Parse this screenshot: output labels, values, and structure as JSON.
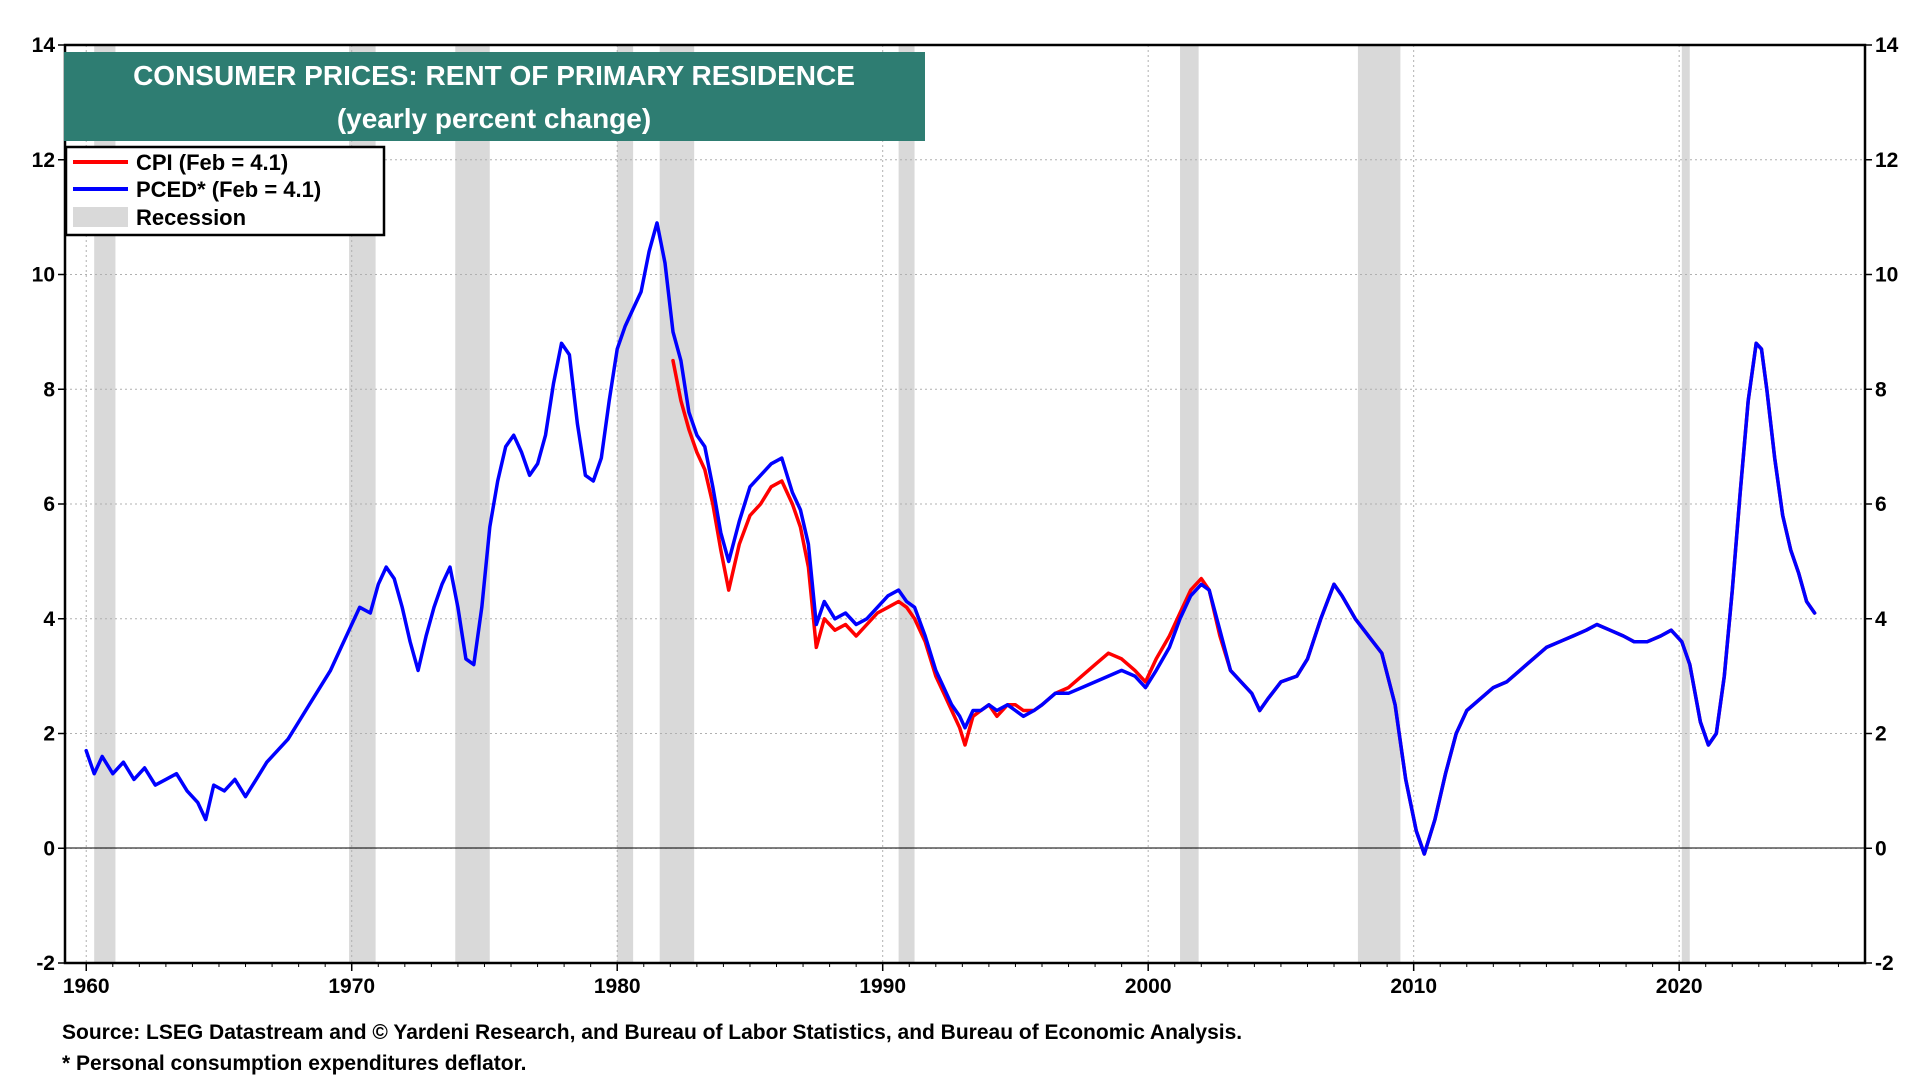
{
  "chart_data": {
    "type": "line",
    "title": "CONSUMER PRICES: RENT OF PRIMARY RESIDENCE",
    "subtitle": "(yearly percent change)",
    "ylim": [
      -2,
      14
    ],
    "yticks": [
      -2,
      0,
      2,
      4,
      6,
      8,
      10,
      12,
      14
    ],
    "xlim": [
      1959.2,
      2027.0
    ],
    "xticks": [
      1960,
      1970,
      1980,
      1990,
      2000,
      2010,
      2020
    ],
    "grid": true,
    "legend": {
      "position": "top-left",
      "entries": [
        {
          "label": "CPI (Feb = 4.1)",
          "color": "#ff0000",
          "kind": "line"
        },
        {
          "label": "PCED* (Feb = 4.1)",
          "color": "#0000ff",
          "kind": "line"
        },
        {
          "label": "Recession",
          "color": "#d9d9d9",
          "kind": "patch"
        }
      ]
    },
    "recessions": [
      [
        1960.3,
        1961.1
      ],
      [
        1969.9,
        1970.9
      ],
      [
        1973.9,
        1975.2
      ],
      [
        1980.0,
        1980.6
      ],
      [
        1981.6,
        1982.9
      ],
      [
        1990.6,
        1991.2
      ],
      [
        2001.2,
        2001.9
      ],
      [
        2007.9,
        2009.5
      ],
      [
        2020.1,
        2020.4
      ]
    ],
    "series": [
      {
        "name": "CPI",
        "color": "#ff0000",
        "x": [
          1982.1,
          1982.4,
          1982.7,
          1983.0,
          1983.3,
          1983.6,
          1983.9,
          1984.2,
          1984.6,
          1985.0,
          1985.4,
          1985.8,
          1986.2,
          1986.6,
          1986.9,
          1987.2,
          1987.5,
          1987.8,
          1988.2,
          1988.6,
          1989.0,
          1989.4,
          1989.8,
          1990.2,
          1990.6,
          1990.9,
          1991.2,
          1991.6,
          1992.0,
          1992.3,
          1992.6,
          1992.9,
          1993.1,
          1993.4,
          1993.7,
          1994.0,
          1994.3,
          1994.7,
          1995.0,
          1995.3,
          1995.7,
          1996.0,
          1996.5,
          1997.0,
          1997.5,
          1998.0,
          1998.5,
          1999.0,
          1999.5,
          1999.9,
          2000.3,
          2000.8,
          2001.2,
          2001.6,
          2002.0,
          2002.3,
          2002.7,
          2003.1,
          2003.5,
          2003.9,
          2004.2,
          2004.5,
          2005.0,
          2005.6,
          2006.0,
          2006.5,
          2007.0,
          2007.3,
          2007.8,
          2008.3,
          2008.8,
          2009.3,
          2009.7,
          2010.1,
          2010.4,
          2010.8,
          2011.2,
          2011.6,
          2012.0,
          2012.5,
          2013.0,
          2013.5,
          2014.0,
          2014.5,
          2015.0,
          2015.5,
          2016.0,
          2016.5,
          2016.9,
          2017.4,
          2017.9,
          2018.3,
          2018.8,
          2019.3,
          2019.7,
          2020.1,
          2020.4,
          2020.8,
          2021.1,
          2021.4,
          2021.7,
          2022.0,
          2022.3,
          2022.6,
          2022.9,
          2023.1,
          2023.3,
          2023.6,
          2023.9,
          2024.2,
          2024.5,
          2024.8,
          2025.1
        ],
        "y": [
          8.5,
          7.8,
          7.3,
          6.9,
          6.6,
          6.0,
          5.2,
          4.5,
          5.3,
          5.8,
          6.0,
          6.3,
          6.4,
          6.0,
          5.6,
          4.9,
          3.5,
          4.0,
          3.8,
          3.9,
          3.7,
          3.9,
          4.1,
          4.2,
          4.3,
          4.2,
          4.0,
          3.6,
          3.0,
          2.7,
          2.4,
          2.1,
          1.8,
          2.3,
          2.4,
          2.5,
          2.3,
          2.5,
          2.5,
          2.4,
          2.4,
          2.5,
          2.7,
          2.8,
          3.0,
          3.2,
          3.4,
          3.3,
          3.1,
          2.9,
          3.3,
          3.7,
          4.1,
          4.5,
          4.7,
          4.5,
          3.7,
          3.1,
          2.9,
          2.7,
          2.4,
          2.6,
          2.9,
          3.0,
          3.3,
          4.0,
          4.6,
          4.4,
          4.0,
          3.7,
          3.4,
          2.5,
          1.2,
          0.3,
          -0.1,
          0.5,
          1.3,
          2.0,
          2.4,
          2.6,
          2.8,
          2.9,
          3.1,
          3.3,
          3.5,
          3.6,
          3.7,
          3.8,
          3.9,
          3.8,
          3.7,
          3.6,
          3.6,
          3.7,
          3.8,
          3.6,
          3.2,
          2.2,
          1.8,
          2.0,
          3.0,
          4.5,
          6.2,
          7.8,
          8.8,
          8.7,
          8.0,
          6.8,
          5.8,
          5.2,
          4.8,
          4.3,
          4.1
        ]
      },
      {
        "name": "PCED",
        "color": "#0000ff",
        "x": [
          1960.0,
          1960.3,
          1960.6,
          1961.0,
          1961.4,
          1961.8,
          1962.2,
          1962.6,
          1963.0,
          1963.4,
          1963.8,
          1964.2,
          1964.5,
          1964.8,
          1965.2,
          1965.6,
          1966.0,
          1966.4,
          1966.8,
          1967.2,
          1967.6,
          1968.0,
          1968.4,
          1968.8,
          1969.2,
          1969.6,
          1970.0,
          1970.3,
          1970.7,
          1971.0,
          1971.3,
          1971.6,
          1971.9,
          1972.2,
          1972.5,
          1972.8,
          1973.1,
          1973.4,
          1973.7,
          1974.0,
          1974.3,
          1974.6,
          1974.9,
          1975.2,
          1975.5,
          1975.8,
          1976.1,
          1976.4,
          1976.7,
          1977.0,
          1977.3,
          1977.6,
          1977.9,
          1978.2,
          1978.5,
          1978.8,
          1979.1,
          1979.4,
          1979.7,
          1980.0,
          1980.3,
          1980.6,
          1980.9,
          1981.2,
          1981.5,
          1981.8,
          1982.1,
          1982.4,
          1982.7,
          1983.0,
          1983.3,
          1983.6,
          1983.9,
          1984.2,
          1984.6,
          1985.0,
          1985.4,
          1985.8,
          1986.2,
          1986.6,
          1986.9,
          1987.2,
          1987.5,
          1987.8,
          1988.2,
          1988.6,
          1989.0,
          1989.4,
          1989.8,
          1990.2,
          1990.6,
          1990.9,
          1991.2,
          1991.6,
          1992.0,
          1992.3,
          1992.6,
          1992.9,
          1993.1,
          1993.4,
          1993.7,
          1994.0,
          1994.3,
          1994.7,
          1995.0,
          1995.3,
          1995.7,
          1996.0,
          1996.5,
          1997.0,
          1997.5,
          1998.0,
          1998.5,
          1999.0,
          1999.5,
          1999.9,
          2000.3,
          2000.8,
          2001.2,
          2001.6,
          2002.0,
          2002.3,
          2002.7,
          2003.1,
          2003.5,
          2003.9,
          2004.2,
          2004.5,
          2005.0,
          2005.6,
          2006.0,
          2006.5,
          2007.0,
          2007.3,
          2007.8,
          2008.3,
          2008.8,
          2009.3,
          2009.7,
          2010.1,
          2010.4,
          2010.8,
          2011.2,
          2011.6,
          2012.0,
          2012.5,
          2013.0,
          2013.5,
          2014.0,
          2014.5,
          2015.0,
          2015.5,
          2016.0,
          2016.5,
          2016.9,
          2017.4,
          2017.9,
          2018.3,
          2018.8,
          2019.3,
          2019.7,
          2020.1,
          2020.4,
          2020.8,
          2021.1,
          2021.4,
          2021.7,
          2022.0,
          2022.3,
          2022.6,
          2022.9,
          2023.1,
          2023.3,
          2023.6,
          2023.9,
          2024.2,
          2024.5,
          2024.8,
          2025.1
        ],
        "y": [
          1.7,
          1.3,
          1.6,
          1.3,
          1.5,
          1.2,
          1.4,
          1.1,
          1.2,
          1.3,
          1.0,
          0.8,
          0.5,
          1.1,
          1.0,
          1.2,
          0.9,
          1.2,
          1.5,
          1.7,
          1.9,
          2.2,
          2.5,
          2.8,
          3.1,
          3.5,
          3.9,
          4.2,
          4.1,
          4.6,
          4.9,
          4.7,
          4.2,
          3.6,
          3.1,
          3.7,
          4.2,
          4.6,
          4.9,
          4.2,
          3.3,
          3.2,
          4.2,
          5.6,
          6.4,
          7.0,
          7.2,
          6.9,
          6.5,
          6.7,
          7.2,
          8.1,
          8.8,
          8.6,
          7.4,
          6.5,
          6.4,
          6.8,
          7.8,
          8.7,
          9.1,
          9.4,
          9.7,
          10.4,
          10.9,
          10.2,
          9.0,
          8.5,
          7.6,
          7.2,
          7.0,
          6.3,
          5.5,
          5.0,
          5.7,
          6.3,
          6.5,
          6.7,
          6.8,
          6.2,
          5.9,
          5.3,
          3.9,
          4.3,
          4.0,
          4.1,
          3.9,
          4.0,
          4.2,
          4.4,
          4.5,
          4.3,
          4.2,
          3.7,
          3.1,
          2.8,
          2.5,
          2.3,
          2.1,
          2.4,
          2.4,
          2.5,
          2.4,
          2.5,
          2.4,
          2.3,
          2.4,
          2.5,
          2.7,
          2.7,
          2.8,
          2.9,
          3.0,
          3.1,
          3.0,
          2.8,
          3.1,
          3.5,
          4.0,
          4.4,
          4.6,
          4.5,
          3.8,
          3.1,
          2.9,
          2.7,
          2.4,
          2.6,
          2.9,
          3.0,
          3.3,
          4.0,
          4.6,
          4.4,
          4.0,
          3.7,
          3.4,
          2.5,
          1.2,
          0.3,
          -0.1,
          0.5,
          1.3,
          2.0,
          2.4,
          2.6,
          2.8,
          2.9,
          3.1,
          3.3,
          3.5,
          3.6,
          3.7,
          3.8,
          3.9,
          3.8,
          3.7,
          3.6,
          3.6,
          3.7,
          3.8,
          3.6,
          3.2,
          2.2,
          1.8,
          2.0,
          3.0,
          4.5,
          6.2,
          7.8,
          8.8,
          8.7,
          8.0,
          6.8,
          5.8,
          5.2,
          4.8,
          4.3,
          4.1
        ]
      }
    ],
    "source": "Source: LSEG Datastream and © Yardeni Research, and Bureau of Labor Statistics, and Bureau of Economic Analysis.",
    "footnote": "* Personal consumption expenditures deflator."
  }
}
